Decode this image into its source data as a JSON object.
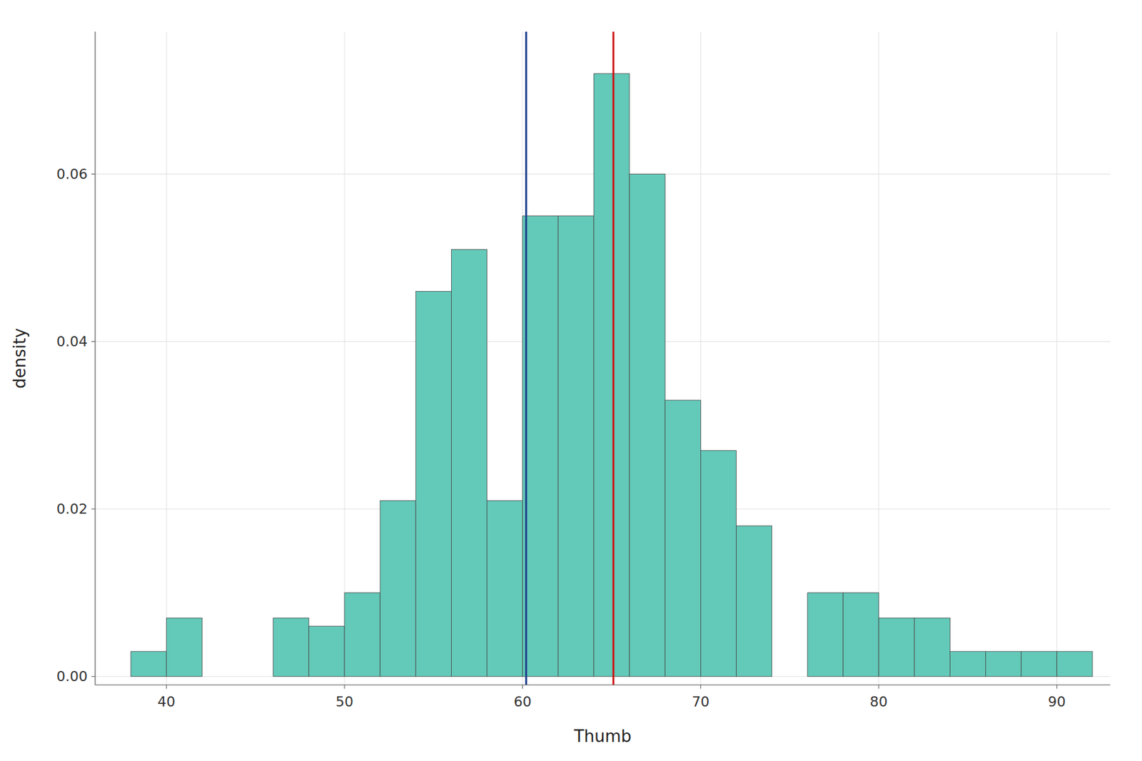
{
  "chart_data": {
    "type": "histogram",
    "x_label": "Thumb",
    "y_label": "density",
    "bins": [
      38,
      40,
      42,
      44,
      46,
      48,
      50,
      52,
      54,
      56,
      58,
      60,
      62,
      64,
      66,
      68,
      70,
      72,
      74,
      76,
      78,
      80,
      82,
      84,
      86,
      88,
      90,
      92
    ],
    "values": [
      0.003,
      0.007,
      0.0,
      0.0,
      0.007,
      0.006,
      0.01,
      0.021,
      0.046,
      0.051,
      0.021,
      0.055,
      0.055,
      0.072,
      0.06,
      0.033,
      0.027,
      0.018,
      0.0,
      0.01,
      0.01,
      0.007,
      0.007,
      0.003,
      0.003,
      0.003,
      0.003
    ],
    "color": "#63c9b8",
    "vlines": [
      {
        "x": 60.2,
        "color": "#1c3d8c"
      },
      {
        "x": 65.1,
        "color": "#cc1111"
      }
    ],
    "xlim": [
      36,
      93
    ],
    "ylim": [
      -0.001,
      0.077
    ],
    "xticks": [
      40,
      50,
      60,
      70,
      80,
      90
    ],
    "yticks": [
      {
        "value": 0.0,
        "label": "0.00"
      },
      0.02,
      0.04,
      0.06
    ],
    "grid": true
  }
}
